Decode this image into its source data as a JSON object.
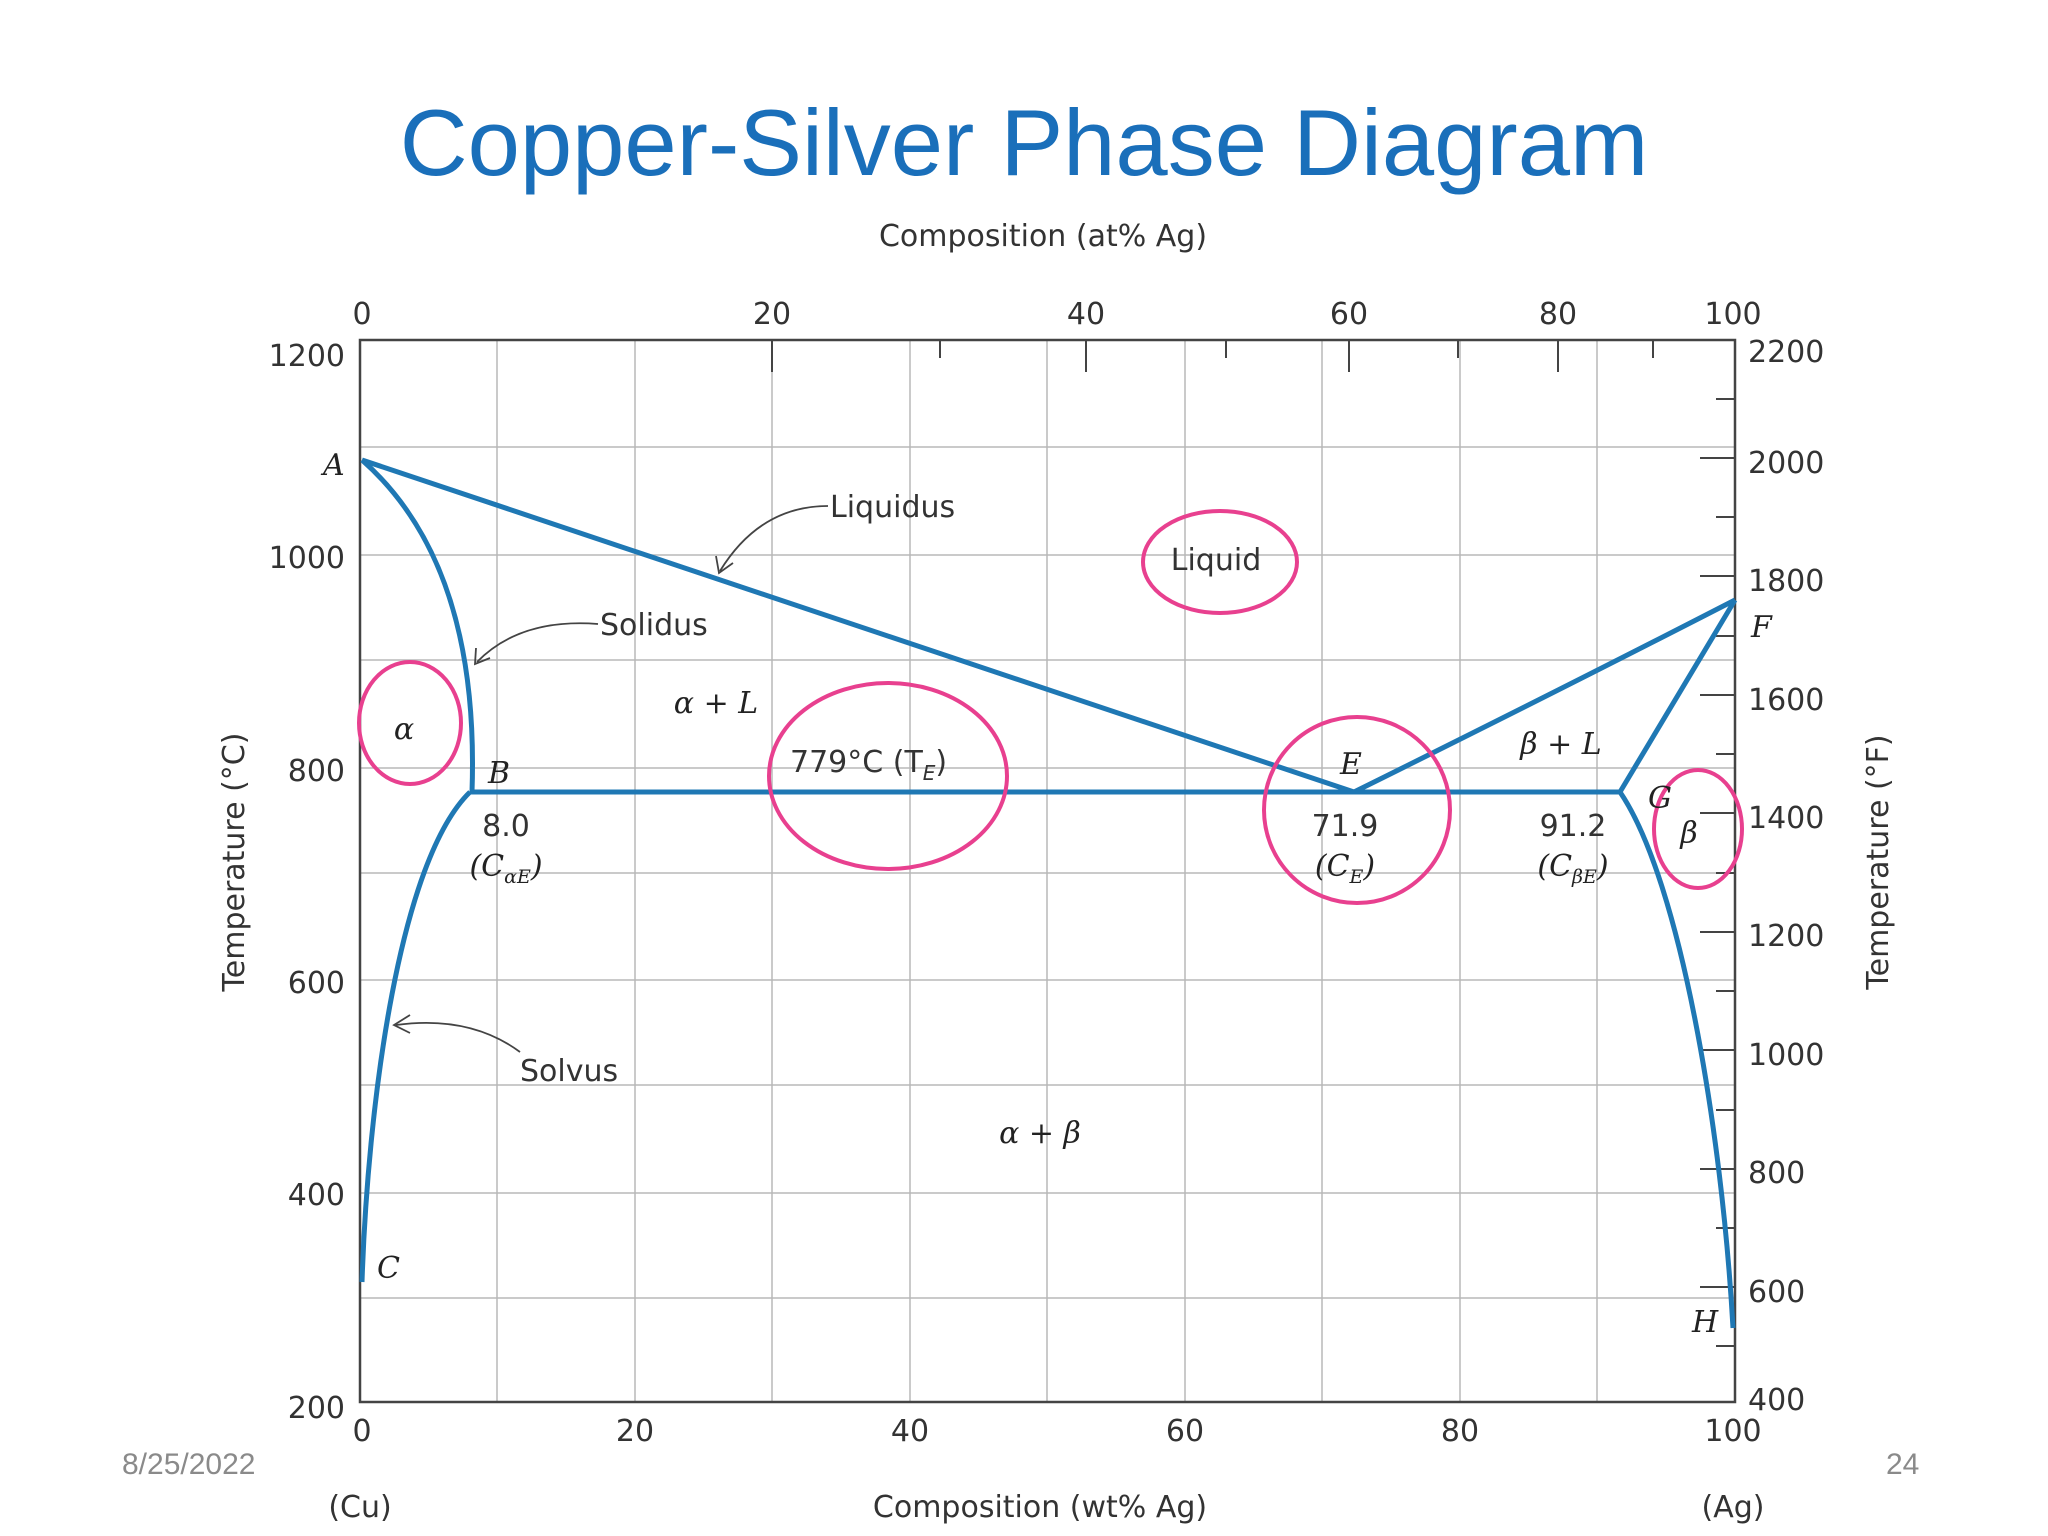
{
  "slide": {
    "title": "Copper-Silver Phase Diagram",
    "date": "8/25/2022",
    "page_number": "24"
  },
  "colors": {
    "title": "#1a6fba",
    "phase_boundary": "#1f78b4",
    "highlight_circle": "#e8408f",
    "grid": "#b8b8b8"
  },
  "diagram": {
    "axes": {
      "bottom_title": "Composition (wt% Ag)",
      "top_title": "Composition (at% Ag)",
      "left_title": "Temperature (°C)",
      "right_title": "Temperature (°F)",
      "bottom_ticks": [
        "0",
        "20",
        "40",
        "60",
        "80",
        "100"
      ],
      "top_ticks": [
        "0",
        "20",
        "40",
        "60",
        "80",
        "100"
      ],
      "left_ticks": [
        "1200",
        "1000",
        "800",
        "600",
        "400",
        "200"
      ],
      "right_ticks": [
        "2200",
        "2000",
        "1800",
        "1600",
        "1400",
        "1200",
        "1000",
        "800",
        "600",
        "400"
      ],
      "cu_end": "(Cu)",
      "ag_end": "(Ag)",
      "x_range_wt_pct_ag": [
        0,
        100
      ],
      "y_range_celsius": [
        200,
        1200
      ]
    },
    "phase_regions": {
      "liquid": "Liquid",
      "alpha": "α",
      "beta": "β",
      "alpha_plus_liquid": "α + L",
      "beta_plus_liquid": "β + L",
      "alpha_plus_beta": "α + β"
    },
    "line_labels": {
      "liquidus": "Liquidus",
      "solidus": "Solidus",
      "solvus": "Solvus"
    },
    "points": {
      "A": "A",
      "B": "B",
      "C": "C",
      "E": "E",
      "F": "F",
      "G": "G",
      "H": "H"
    },
    "eutectic": {
      "temperature_label": "779°C (T",
      "temperature_subscript": "E",
      "temperature_close": ")",
      "temperature_celsius": 779,
      "c_alpha_e_value": "8.0",
      "c_e_value": "71.9",
      "c_beta_e_value": "91.2",
      "c_alpha_e_symbol": "C",
      "c_alpha_e_sub": "αE",
      "c_e_symbol": "C",
      "c_e_sub": "E",
      "c_beta_e_symbol": "C",
      "c_beta_e_sub": "βE"
    }
  }
}
